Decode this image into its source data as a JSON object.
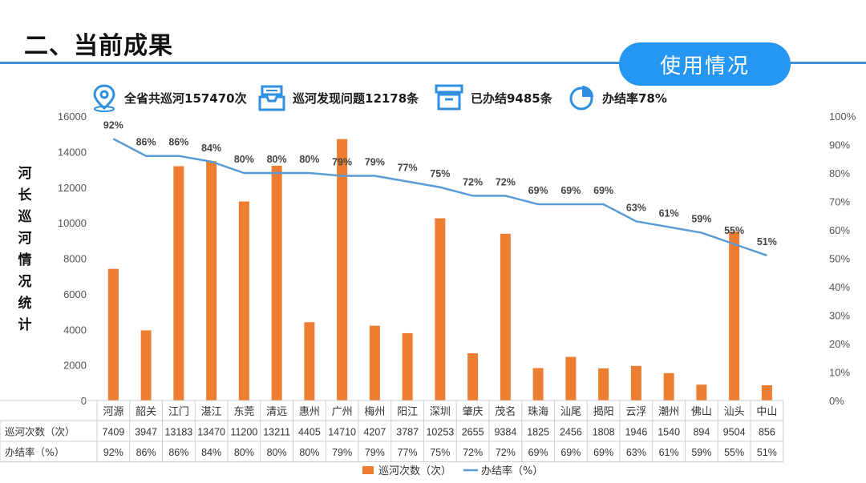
{
  "header": {
    "title": "二、当前成果",
    "badge": "使用情况"
  },
  "stats": [
    {
      "icon": "location-pin-icon",
      "text": "全省共巡河157470次"
    },
    {
      "icon": "inbox-tray-icon",
      "text": "巡河发现问题12178条"
    },
    {
      "icon": "archive-box-icon",
      "text": "已办结9485条"
    },
    {
      "icon": "pie-chart-icon",
      "text": "办结率78%"
    }
  ],
  "vertical_label": [
    "河",
    "长",
    "巡",
    "河",
    "情",
    "况",
    "统",
    "计"
  ],
  "colors": {
    "bar": "#ed7d31",
    "line": "#5b9bd5",
    "accent": "#2596f2",
    "icon": "#2f8fe0"
  },
  "chart_data": {
    "type": "bar",
    "categories": [
      "河源",
      "韶关",
      "江门",
      "湛江",
      "东莞",
      "清远",
      "惠州",
      "广州",
      "梅州",
      "阳江",
      "深圳",
      "肇庆",
      "茂名",
      "珠海",
      "汕尾",
      "揭阳",
      "云浮",
      "潮州",
      "佛山",
      "汕头",
      "中山"
    ],
    "series": [
      {
        "name": "巡河次数（次）",
        "type": "bar",
        "axis": "left",
        "values": [
          7409,
          3947,
          13183,
          13470,
          11200,
          13211,
          4405,
          14710,
          4207,
          3787,
          10253,
          2655,
          9384,
          1825,
          2456,
          1808,
          1946,
          1540,
          894,
          9504,
          856
        ]
      },
      {
        "name": "办结率（%）",
        "type": "line",
        "axis": "right",
        "values": [
          92,
          86,
          86,
          84,
          80,
          80,
          80,
          79,
          79,
          77,
          75,
          72,
          72,
          69,
          69,
          69,
          63,
          61,
          59,
          55,
          51
        ]
      }
    ],
    "left_axis": {
      "min": 0,
      "max": 16000,
      "ticks": [
        0,
        2000,
        4000,
        6000,
        8000,
        10000,
        12000,
        14000,
        16000
      ]
    },
    "right_axis": {
      "min": 0,
      "max": 100,
      "ticks": [
        "0%",
        "10%",
        "20%",
        "30%",
        "40%",
        "50%",
        "60%",
        "70%",
        "80%",
        "90%",
        "100%"
      ]
    },
    "line_labels": [
      "92%",
      "86%",
      "86%",
      "84%",
      "80%",
      "80%",
      "80%",
      "79%",
      "79%",
      "77%",
      "75%",
      "72%",
      "72%",
      "69%",
      "69%",
      "69%",
      "63%",
      "61%",
      "59%",
      "55%",
      "51%"
    ],
    "table": {
      "row_labels": [
        "巡河次数（次）",
        "办结率（%）"
      ],
      "rows": [
        [
          "7409",
          "3947",
          "13183",
          "13470",
          "11200",
          "13211",
          "4405",
          "14710",
          "4207",
          "3787",
          "10253",
          "2655",
          "9384",
          "1825",
          "2456",
          "1808",
          "1946",
          "1540",
          "894",
          "9504",
          "856"
        ],
        [
          "92%",
          "86%",
          "86%",
          "84%",
          "80%",
          "80%",
          "80%",
          "79%",
          "79%",
          "77%",
          "75%",
          "72%",
          "72%",
          "69%",
          "69%",
          "69%",
          "63%",
          "61%",
          "59%",
          "55%",
          "51%"
        ]
      ]
    },
    "legend": [
      "巡河次数（次）",
      "办结率（%）"
    ],
    "legend_position": "bottom",
    "grid": false
  }
}
